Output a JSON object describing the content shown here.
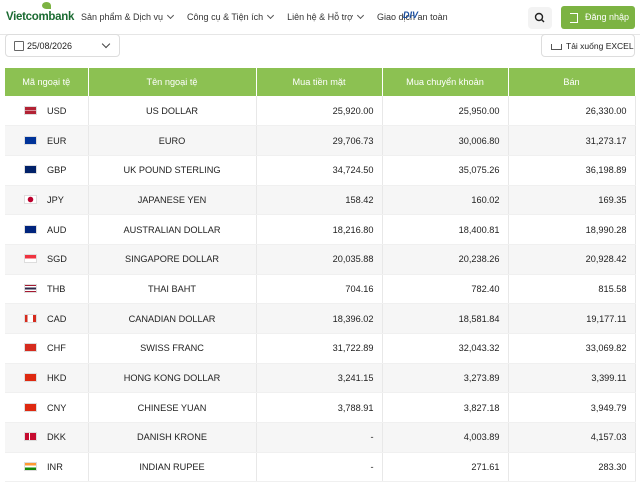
{
  "header": {
    "logo": "Vietcombank",
    "nav": [
      "Sản phẩm & Dịch vụ",
      "Công cụ & Tiện ích",
      "Liên hệ & Hỗ trợ",
      "Giao dịch an toàn"
    ],
    "badge": "DIV",
    "login": "Đăng nhập"
  },
  "toolbar": {
    "date": "25/08/2026",
    "download": "Tải xuống EXCEL"
  },
  "table": {
    "columns": [
      "Mã ngoại tệ",
      "Tên ngoại tệ",
      "Mua tiền mặt",
      "Mua chuyển khoản",
      "Bán"
    ],
    "rows": [
      [
        "USD",
        "US DOLLAR",
        "25,920.00",
        "25,950.00",
        "26,330.00"
      ],
      [
        "EUR",
        "EURO",
        "29,706.73",
        "30,006.80",
        "31,273.17"
      ],
      [
        "GBP",
        "UK POUND STERLING",
        "34,724.50",
        "35,075.26",
        "36,198.89"
      ],
      [
        "JPY",
        "JAPANESE YEN",
        "158.42",
        "160.02",
        "169.35"
      ],
      [
        "AUD",
        "AUSTRALIAN DOLLAR",
        "18,216.80",
        "18,400.81",
        "18,990.28"
      ],
      [
        "SGD",
        "SINGAPORE DOLLAR",
        "20,035.88",
        "20,238.26",
        "20,928.42"
      ],
      [
        "THB",
        "THAI BAHT",
        "704.16",
        "782.40",
        "815.58"
      ],
      [
        "CAD",
        "CANADIAN DOLLAR",
        "18,396.02",
        "18,581.84",
        "19,177.11"
      ],
      [
        "CHF",
        "SWISS FRANC",
        "31,722.89",
        "32,043.32",
        "33,069.82"
      ],
      [
        "HKD",
        "HONG KONG DOLLAR",
        "3,241.15",
        "3,273.89",
        "3,399.11"
      ],
      [
        "CNY",
        "CHINESE YUAN",
        "3,788.91",
        "3,827.18",
        "3,949.79"
      ],
      [
        "DKK",
        "DANISH KRONE",
        "-",
        "4,003.89",
        "4,157.03"
      ],
      [
        "INR",
        "INDIAN RUPEE",
        "-",
        "271.61",
        "283.30"
      ]
    ]
  }
}
